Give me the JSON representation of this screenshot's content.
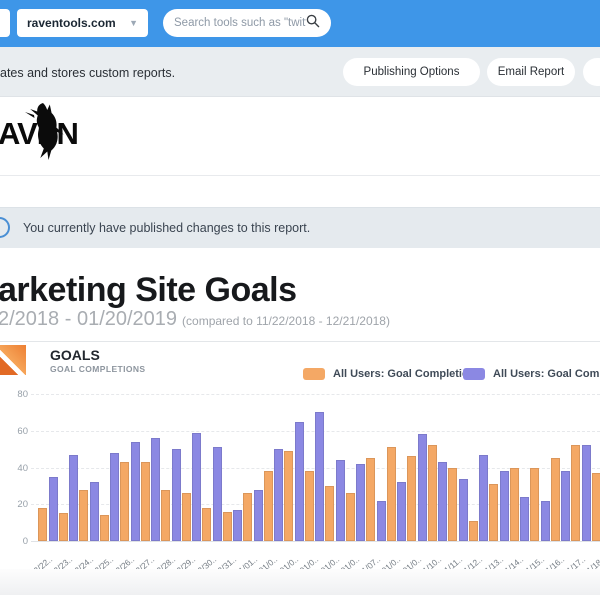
{
  "topbar": {
    "site_dropdown": "raventools.com",
    "search_placeholder": "Search tools such as \"twitter\""
  },
  "toolbar": {
    "description": "ates and stores custom reports.",
    "publishing_options_label": "Publishing Options",
    "email_report_label": "Email Report"
  },
  "logo": {
    "text": "AVEN"
  },
  "notice": {
    "text": "You currently have published changes to this report."
  },
  "report": {
    "title": "arketing Site Goals",
    "date_range": "2/2018 - 01/20/2019",
    "comparison": "(compared to 11/22/2018 - 12/21/2018)"
  },
  "widget": {
    "title": "GOALS",
    "subtitle": "GOAL COMPLETIONS"
  },
  "legend": [
    {
      "label": "All Users: Goal Completions",
      "color": "#F4A865"
    },
    {
      "label": "All Users: Goal Completio",
      "color": "#8B88E3"
    }
  ],
  "colors": {
    "topbar_blue": "#3E96E8",
    "toolbar_gray": "#E9EDF0",
    "notice_gray": "#E5EAEE",
    "orange_series": "#F4A865",
    "purple_series": "#8B88E3",
    "goal_icon_orange": "#ED7F33"
  },
  "chart_data": {
    "type": "bar",
    "title": "GOALS - GOAL COMPLETIONS",
    "xlabel": "",
    "ylabel": "",
    "ylim": [
      0,
      80
    ],
    "yticks": [
      0,
      20,
      40,
      60,
      80
    ],
    "grid": true,
    "legend_position": "top-right",
    "categories": [
      "12/22..",
      "12/23..",
      "12/24..",
      "12/25..",
      "12/26..",
      "12/27..",
      "12/28..",
      "12/29..",
      "12/30..",
      "12/31..",
      "01/01..",
      "01/0..",
      "01/0..",
      "01/0..",
      "01/0..",
      "01/0..",
      "01/07..",
      "01/0..",
      "01/0..",
      "01/10..",
      "01/11..",
      "01/12..",
      "01/13..",
      "01/14..",
      "01/15..",
      "01/16..",
      "01/17..",
      "01/18.."
    ],
    "series": [
      {
        "name": "All Users: Goal Completions",
        "color": "#F4A865",
        "values": [
          18,
          15,
          28,
          14,
          43,
          43,
          28,
          26,
          18,
          16,
          26,
          38,
          49,
          38,
          30,
          26,
          45,
          51,
          46,
          52,
          40,
          11,
          31,
          40,
          40,
          45,
          52,
          37
        ]
      },
      {
        "name": "All Users: Goal Completio",
        "color": "#8B88E3",
        "values": [
          35,
          47,
          32,
          48,
          54,
          56,
          50,
          59,
          51,
          17,
          28,
          50,
          65,
          70,
          44,
          42,
          22,
          32,
          58,
          43,
          34,
          47,
          38,
          24,
          22,
          38,
          52,
          null
        ]
      }
    ]
  }
}
